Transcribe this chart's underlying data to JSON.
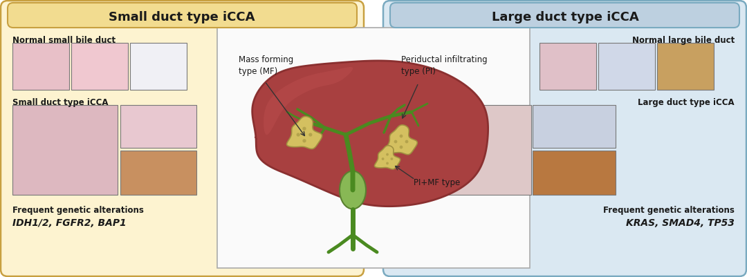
{
  "fig_width": 10.8,
  "fig_height": 4.01,
  "bg_color": "#ffffff",
  "left_panel_color": "#FDF3D0",
  "right_panel_color": "#DAE8F2",
  "left_header_color": "#F2DC90",
  "right_header_color": "#BDD0E0",
  "center_panel_color": "#F5F5F5",
  "left_title": "Small duct type iCCA",
  "right_title": "Large duct type iCCA",
  "left_subtitle1": "Normal small bile duct",
  "left_subtitle2": "Small duct type iCCA",
  "left_genetics": "Frequent genetic alterations",
  "left_genes": "IDH1/2, FGFR2, BAP1",
  "right_subtitle1": "Normal large bile duct",
  "right_subtitle2": "Large duct type iCCA",
  "right_genetics": "Frequent genetic alterations",
  "right_genes": "KRAS, SMAD4, TP53",
  "center_label_mf": "Mass forming\ntype (MF)",
  "center_label_pi": "Periductal infiltrating\ntype (PI)",
  "center_label_pimf": "PI+MF type",
  "border_color_left": "#C8A040",
  "border_color_right": "#7AAAC0",
  "text_color": "#1A1A1A",
  "liver_color": "#A84040",
  "liver_edge": "#8A3030",
  "liver_highlight": "#C05050",
  "gallbladder_color": "#88B855",
  "gallbladder_edge": "#5A8030",
  "duct_color": "#4A8A20",
  "tumor_color": "#D4C060",
  "tumor_edge": "#A09040",
  "img_left_top1": "#E8C0C8",
  "img_left_top2": "#F0C8D0",
  "img_left_top3": "#F0F0F5",
  "img_left_big": "#DDB8C0",
  "img_left_tr": "#E8C8D0",
  "img_left_br": "#C89060",
  "img_right_top1": "#E0C0C8",
  "img_right_top2": "#D0D8E8",
  "img_right_top3": "#C8A060",
  "img_right_big": "#DEC8C8",
  "img_right_tr": "#C8D0E0",
  "img_right_br": "#B87840"
}
